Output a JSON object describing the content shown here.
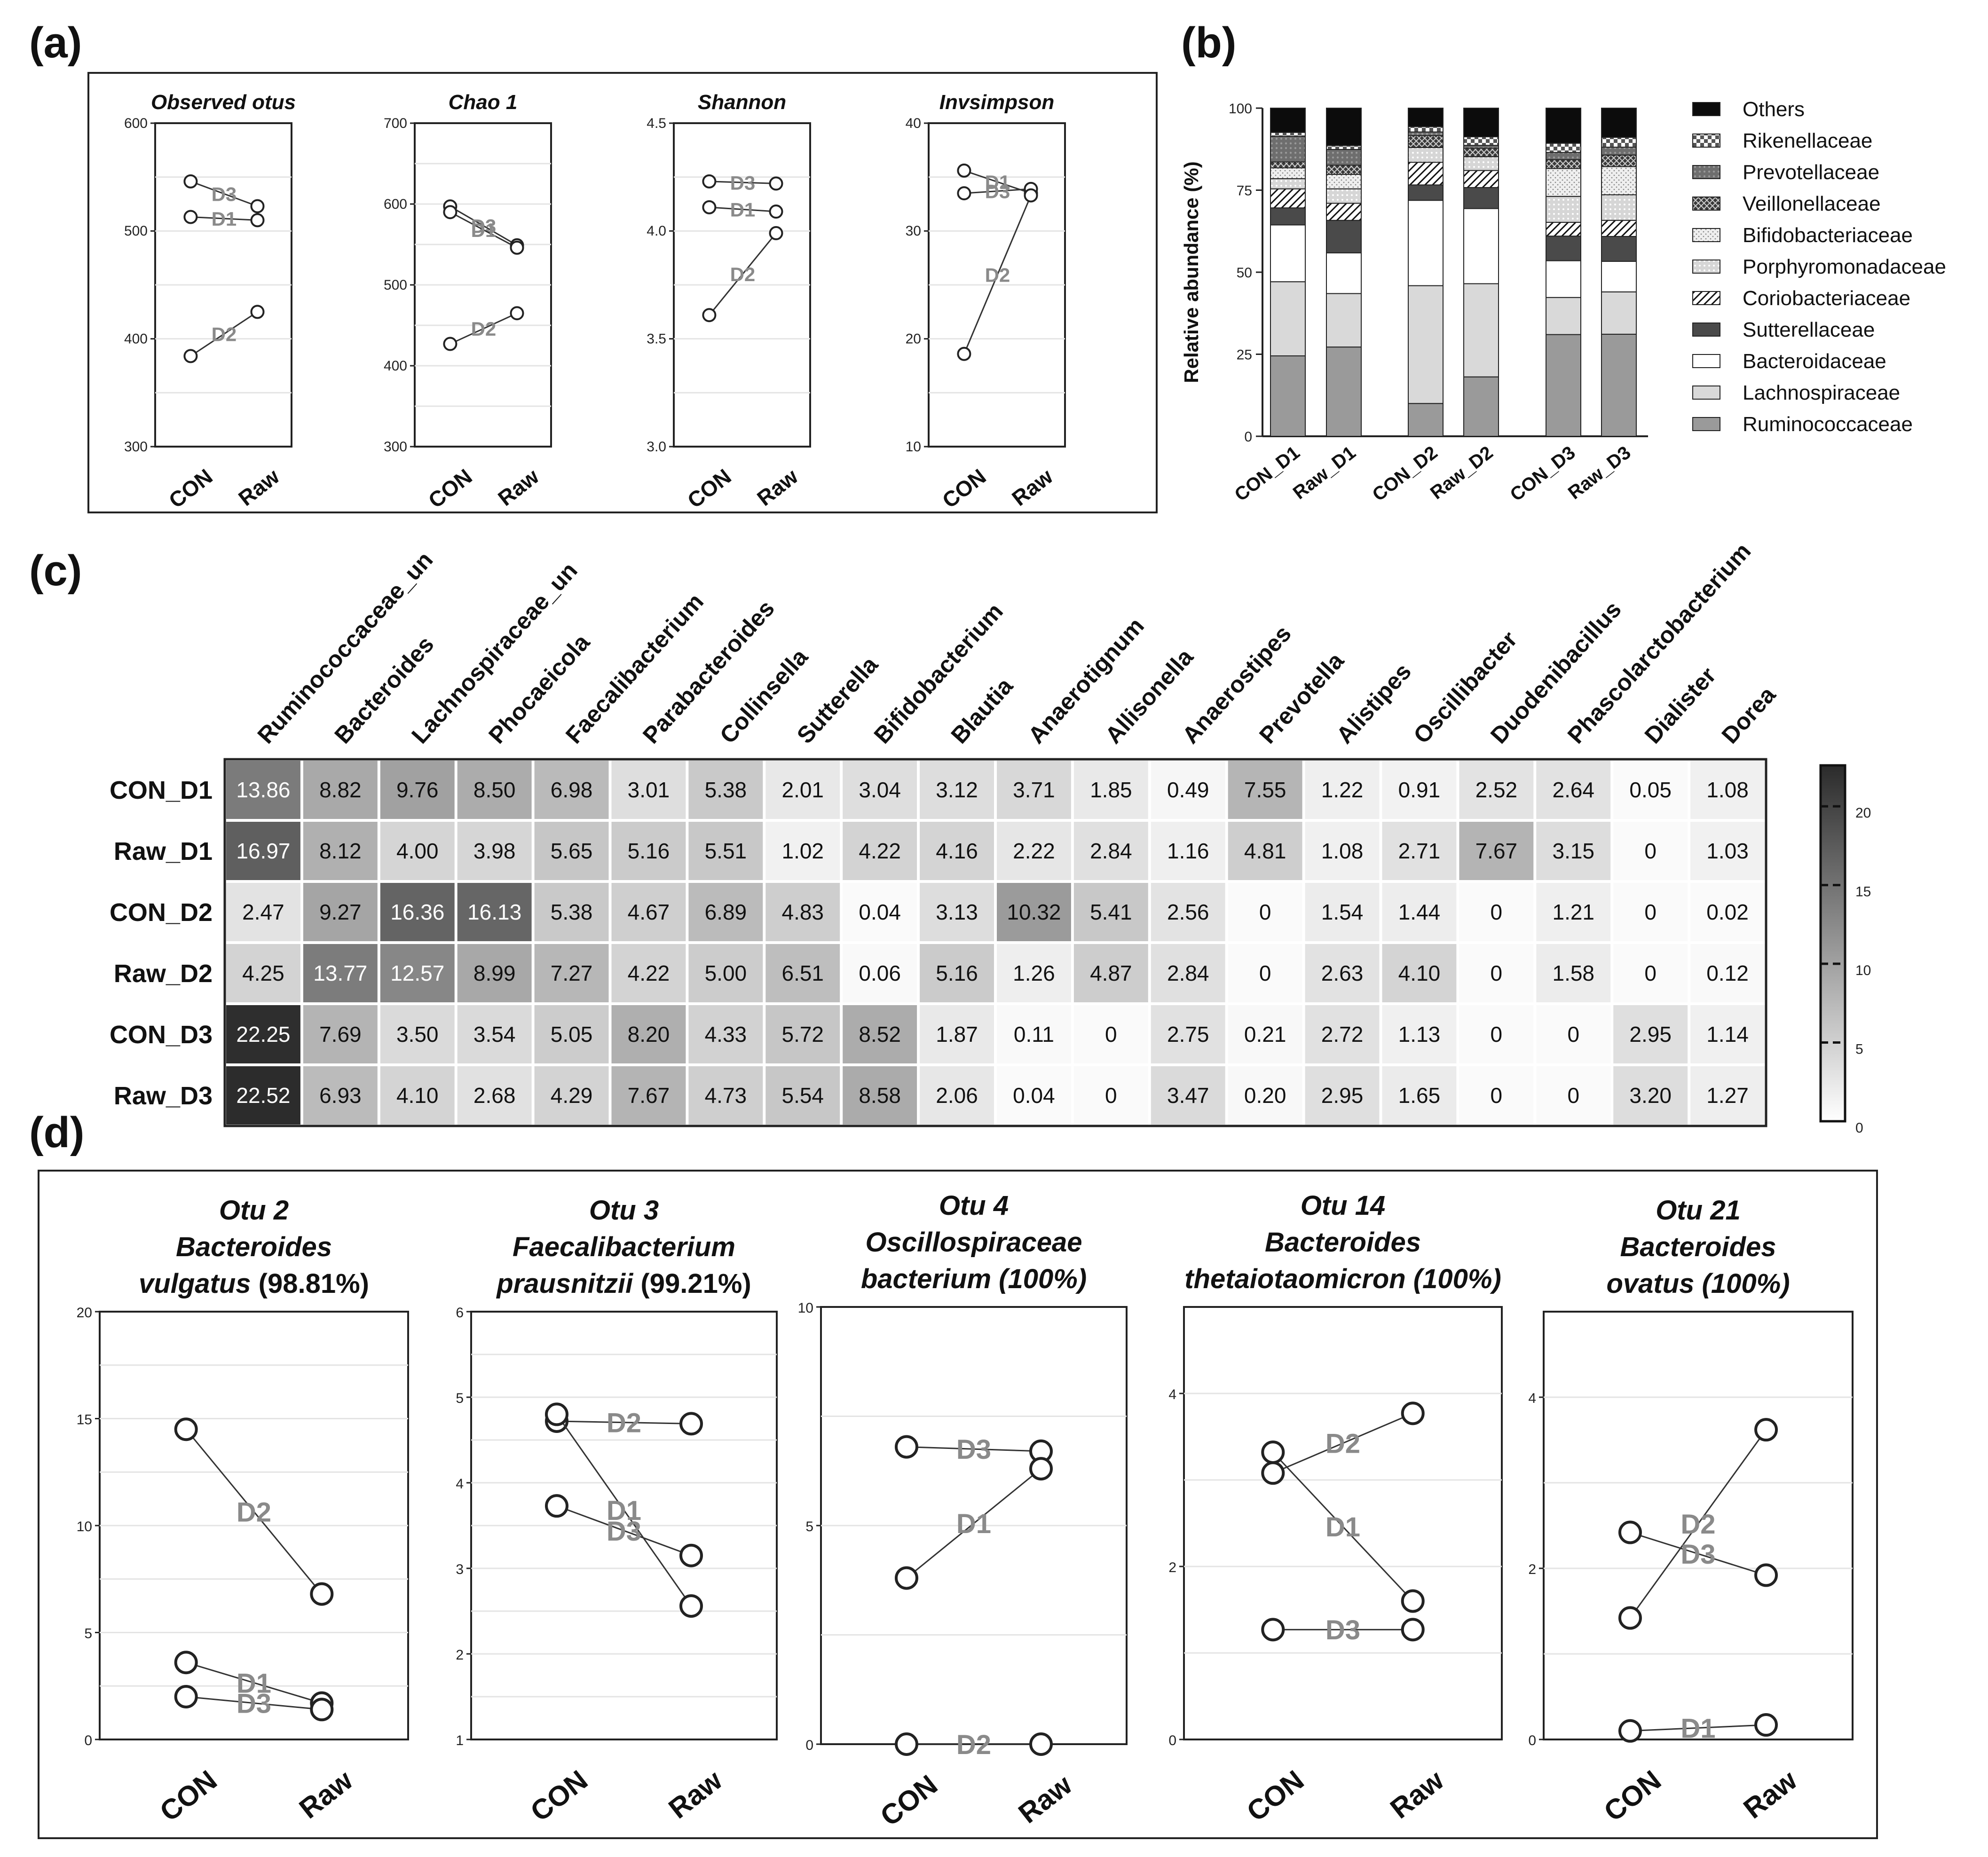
{
  "panel_labels": {
    "a": "(a)",
    "b": "(b)",
    "c": "(c)",
    "d": "(d)"
  },
  "colors": {
    "line": "#333333",
    "label_grey": "#8a8a8a",
    "frame": "#222222"
  },
  "chart_data": [
    {
      "id": "a1",
      "type": "line",
      "title": "Observed otus",
      "categories": [
        "CON",
        "Raw"
      ],
      "ylim": [
        300,
        600
      ],
      "yticks": [
        "300",
        "400",
        "500",
        "600"
      ],
      "series": [
        {
          "name": "D3",
          "values": [
            546,
            523
          ]
        },
        {
          "name": "D1",
          "values": [
            513,
            510
          ]
        },
        {
          "name": "D2",
          "values": [
            384,
            425
          ]
        }
      ]
    },
    {
      "id": "a2",
      "type": "line",
      "title": "Chao 1",
      "categories": [
        "CON",
        "Raw"
      ],
      "ylim": [
        300,
        700
      ],
      "yticks": [
        "300",
        "400",
        "500",
        "600",
        "700"
      ],
      "series": [
        {
          "name": "D3",
          "values": [
            597,
            549
          ]
        },
        {
          "name": "D1",
          "values": [
            590,
            546
          ]
        },
        {
          "name": "D2",
          "values": [
            427,
            465
          ]
        }
      ]
    },
    {
      "id": "a3",
      "type": "line",
      "title": "Shannon",
      "categories": [
        "CON",
        "Raw"
      ],
      "ylim": [
        3.0,
        4.5
      ],
      "yticks": [
        "3.0",
        "3.5",
        "4.0",
        "4.5"
      ],
      "series": [
        {
          "name": "D3",
          "values": [
            4.23,
            4.22
          ]
        },
        {
          "name": "D1",
          "values": [
            4.11,
            4.09
          ]
        },
        {
          "name": "D2",
          "values": [
            3.61,
            3.99
          ]
        }
      ]
    },
    {
      "id": "a4",
      "type": "line",
      "title": "Invsimpson",
      "categories": [
        "CON",
        "Raw"
      ],
      "ylim": [
        10,
        40
      ],
      "yticks": [
        "10",
        "20",
        "30",
        "40"
      ],
      "series": [
        {
          "name": "D1",
          "values": [
            35.6,
            33.5
          ]
        },
        {
          "name": "D3",
          "values": [
            33.5,
            33.9
          ]
        },
        {
          "name": "D2",
          "values": [
            18.6,
            33.3
          ]
        }
      ]
    },
    {
      "id": "b",
      "type": "bar",
      "stacked": true,
      "ylabel": "Relative abundance (%)",
      "ylim": [
        0,
        100
      ],
      "yticks": [
        "0",
        "25",
        "50",
        "75",
        "100"
      ],
      "categories": [
        "CON_D1",
        "Raw_D1",
        "CON_D2",
        "Raw_D2",
        "CON_D3",
        "Raw_D3"
      ],
      "series": [
        {
          "name": "Ruminococcaceae",
          "values": [
            24.5,
            27.2,
            10.0,
            18.1,
            31.0,
            31.1
          ]
        },
        {
          "name": "Lachnospiraceae",
          "values": [
            22.6,
            16.3,
            35.9,
            28.4,
            11.3,
            12.9
          ]
        },
        {
          "name": "Bacteroidaceae",
          "values": [
            17.3,
            12.4,
            26.0,
            22.9,
            11.2,
            9.3
          ]
        },
        {
          "name": "Sutterellaceae",
          "values": [
            5.2,
            9.9,
            4.7,
            6.4,
            7.5,
            7.6
          ]
        },
        {
          "name": "Coriobacteriaceae",
          "values": [
            5.8,
            5.2,
            6.9,
            5.2,
            4.2,
            4.9
          ]
        },
        {
          "name": "Porphyromonadaceae",
          "values": [
            3.1,
            4.4,
            4.5,
            4.2,
            7.9,
            7.8
          ]
        },
        {
          "name": "Bifidobacteriaceae",
          "values": [
            3.3,
            4.4,
            0.04,
            0.06,
            8.5,
            8.6
          ]
        },
        {
          "name": "Veillonellaceae",
          "values": [
            1.8,
            2.8,
            3.6,
            2.5,
            2.7,
            3.5
          ]
        },
        {
          "name": "Prevotellaceae",
          "values": [
            7.8,
            4.8,
            1.1,
            0.9,
            2.2,
            2.4
          ]
        },
        {
          "name": "Rikenellaceae",
          "values": [
            1.2,
            1.2,
            1.6,
            2.6,
            2.8,
            3.0
          ]
        },
        {
          "name": "Others",
          "values": [
            7.4,
            11.4,
            5.66,
            8.74,
            10.7,
            8.9
          ]
        }
      ],
      "legend_order": [
        "Others",
        "Rikenellaceae",
        "Prevotellaceae",
        "Veillonellaceae",
        "Bifidobacteriaceae",
        "Porphyromonadaceae",
        "Coriobacteriaceae",
        "Sutterellaceae",
        "Bacteroidaceae",
        "Lachnospiraceae",
        "Ruminococcaceae"
      ]
    },
    {
      "id": "c",
      "type": "heatmap",
      "columns": [
        "Ruminococcaceae_un",
        "Bacteroides",
        "Lachnospiraceae_un",
        "Phocaeicola",
        "Faecalibacterium",
        "Parabacteroides",
        "Collinsella",
        "Sutterella",
        "Bifidobacterium",
        "Blautia",
        "Anaerotignum",
        "Allisonella",
        "Anaerostipes",
        "Prevotella",
        "Alistipes",
        "Oscillibacter",
        "Duodenibacillus",
        "Phascolarctobacterium",
        "Dialister",
        "Dorea"
      ],
      "rows": [
        "CON_D1",
        "Raw_D1",
        "CON_D2",
        "Raw_D2",
        "CON_D3",
        "Raw_D3"
      ],
      "values": [
        [
          "13.86",
          "8.82",
          "9.76",
          "8.50",
          "6.98",
          "3.01",
          "5.38",
          "2.01",
          "3.04",
          "3.12",
          "3.71",
          "1.85",
          "0.49",
          "7.55",
          "1.22",
          "0.91",
          "2.52",
          "2.64",
          "0.05",
          "1.08"
        ],
        [
          "16.97",
          "8.12",
          "4.00",
          "3.98",
          "5.65",
          "5.16",
          "5.51",
          "1.02",
          "4.22",
          "4.16",
          "2.22",
          "2.84",
          "1.16",
          "4.81",
          "1.08",
          "2.71",
          "7.67",
          "3.15",
          "0",
          "1.03"
        ],
        [
          "2.47",
          "9.27",
          "16.36",
          "16.13",
          "5.38",
          "4.67",
          "6.89",
          "4.83",
          "0.04",
          "3.13",
          "10.32",
          "5.41",
          "2.56",
          "0",
          "1.54",
          "1.44",
          "0",
          "1.21",
          "0",
          "0.02"
        ],
        [
          "4.25",
          "13.77",
          "12.57",
          "8.99",
          "7.27",
          "4.22",
          "5.00",
          "6.51",
          "0.06",
          "5.16",
          "1.26",
          "4.87",
          "2.84",
          "0",
          "2.63",
          "4.10",
          "0",
          "1.58",
          "0",
          "0.12"
        ],
        [
          "22.25",
          "7.69",
          "3.50",
          "3.54",
          "5.05",
          "8.20",
          "4.33",
          "5.72",
          "8.52",
          "1.87",
          "0.11",
          "0",
          "2.75",
          "0.21",
          "2.72",
          "1.13",
          "0",
          "0",
          "2.95",
          "1.14"
        ],
        [
          "22.52",
          "6.93",
          "4.10",
          "2.68",
          "4.29",
          "7.67",
          "4.73",
          "5.54",
          "8.58",
          "2.06",
          "0.04",
          "0",
          "3.47",
          "0.20",
          "2.95",
          "1.65",
          "0",
          "0",
          "3.20",
          "1.27"
        ]
      ],
      "scale": {
        "min": 0,
        "max": 22.6,
        "ticks": [
          "0",
          "5",
          "10",
          "15",
          "20"
        ]
      }
    },
    {
      "id": "d1",
      "type": "line",
      "title_lines": [
        "Otu 2",
        "Bacteroides",
        "vulgatus"
      ],
      "title_suffix": " (98.81%)",
      "categories": [
        "CON",
        "Raw"
      ],
      "ylim": [
        0,
        20
      ],
      "yticks": [
        "0",
        "5",
        "10",
        "15",
        "20"
      ],
      "series": [
        {
          "name": "D2",
          "values": [
            14.5,
            6.8
          ]
        },
        {
          "name": "D1",
          "values": [
            3.6,
            1.7
          ]
        },
        {
          "name": "D3",
          "values": [
            2.0,
            1.4
          ]
        }
      ]
    },
    {
      "id": "d2",
      "type": "line",
      "title_lines": [
        "Otu 3",
        "Faecalibacterium",
        "prausnitzii"
      ],
      "title_suffix": " (99.21%)",
      "categories": [
        "CON",
        "Raw"
      ],
      "ylim": [
        1,
        6
      ],
      "yticks": [
        "1",
        "2",
        "3",
        "4",
        "5",
        "6"
      ],
      "series": [
        {
          "name": "D2",
          "values": [
            4.72,
            4.69
          ]
        },
        {
          "name": "D1",
          "values": [
            4.8,
            2.56
          ]
        },
        {
          "name": "D3",
          "values": [
            3.73,
            3.15
          ]
        }
      ]
    },
    {
      "id": "d3",
      "type": "line",
      "title_lines": [
        "Otu 4",
        "Oscillospiraceae",
        "bacterium (100%)"
      ],
      "title_suffix": "",
      "categories": [
        "CON",
        "Raw"
      ],
      "ylim": [
        0,
        10
      ],
      "yticks": [
        "0",
        "5",
        "10"
      ],
      "series": [
        {
          "name": "D3",
          "values": [
            6.8,
            6.7
          ]
        },
        {
          "name": "D1",
          "values": [
            3.8,
            6.3
          ]
        },
        {
          "name": "D2",
          "values": [
            0.0,
            0.0
          ]
        }
      ]
    },
    {
      "id": "d4",
      "type": "line",
      "title_lines": [
        "Otu 14",
        "Bacteroides",
        "thetaiotaomicron (100%)"
      ],
      "title_suffix": "",
      "categories": [
        "CON",
        "Raw"
      ],
      "ylim": [
        0,
        5
      ],
      "yticks": [
        "0",
        "2",
        "4"
      ],
      "series": [
        {
          "name": "D2",
          "values": [
            3.08,
            3.77
          ]
        },
        {
          "name": "D1",
          "values": [
            3.32,
            1.6
          ]
        },
        {
          "name": "D3",
          "values": [
            1.27,
            1.27
          ]
        }
      ]
    },
    {
      "id": "d5",
      "type": "line",
      "title_lines": [
        "Otu 21",
        "Bacteroides",
        "ovatus (100%)"
      ],
      "title_suffix": "",
      "categories": [
        "CON",
        "Raw"
      ],
      "ylim": [
        0,
        5
      ],
      "yticks": [
        "0",
        "2",
        "4"
      ],
      "series": [
        {
          "name": "D2",
          "values": [
            1.42,
            3.62
          ]
        },
        {
          "name": "D3",
          "values": [
            2.42,
            1.92
          ]
        },
        {
          "name": "D1",
          "values": [
            0.1,
            0.17
          ]
        }
      ]
    }
  ]
}
